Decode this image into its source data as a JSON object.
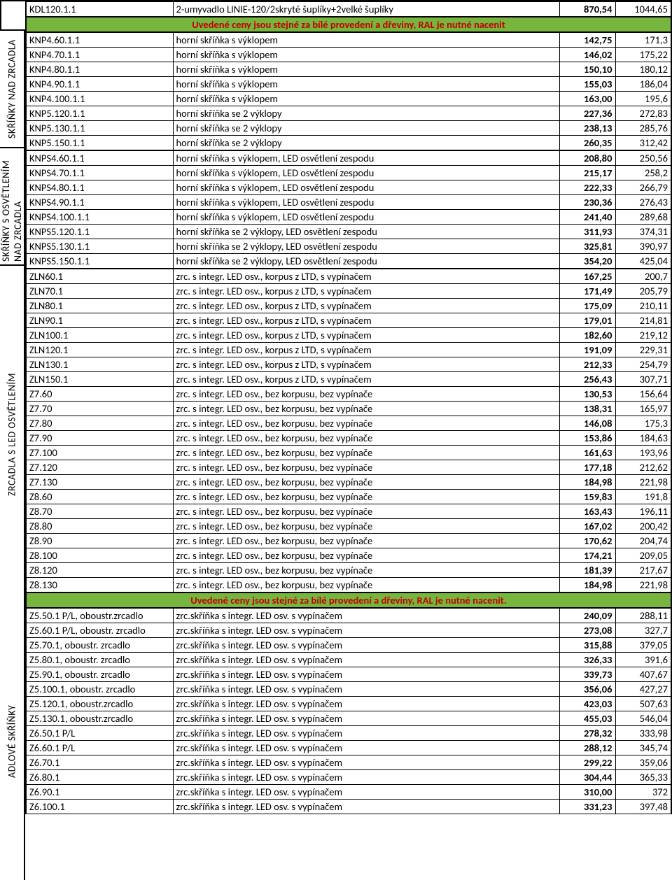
{
  "banner1": "Uvedené ceny jsou stejné za bílé provedení a dřeviny, RAL je nutné nacenit",
  "banner2": "Uvedené ceny jsou stejné za bílé provedení a dřeviny, RAL je nutné nacenit.",
  "sidelabels": [
    "SKŘÍŇKY NAD ZRCADLA",
    "SKŘÍŇKY S OSVĚTLENÍM NAD ZRCADLA",
    "ZRCADLA S LED OSVĚTLENÍM",
    "ADLOVÉ SKŘÍŇKY"
  ],
  "topRow": {
    "code": "KDL120.1.1",
    "desc": "2-umyvadlo LINIE-120/2skryté šuplíky+2velké šuplíky",
    "p1": "870,54",
    "p2": "1044,65"
  },
  "sec1": [
    {
      "code": "KNP4.60.1.1",
      "desc": "horní skříňka s výklopem",
      "p1": "142,75",
      "p2": "171,3"
    },
    {
      "code": "KNP4.70.1.1",
      "desc": "horní skříňka s výklopem",
      "p1": "146,02",
      "p2": "175,22"
    },
    {
      "code": "KNP4.80.1.1",
      "desc": "horní skříňka s výklopem",
      "p1": "150,10",
      "p2": "180,12"
    },
    {
      "code": "KNP4.90.1.1",
      "desc": "horní skříňka s výklopem",
      "p1": "155,03",
      "p2": "186,04"
    },
    {
      "code": "KNP4.100.1.1",
      "desc": "horní skříňka s výklopem",
      "p1": "163,00",
      "p2": "195,6"
    },
    {
      "code": "KNP5.120.1.1",
      "desc": "horní skříňka se 2 výklopy",
      "p1": "227,36",
      "p2": "272,83"
    },
    {
      "code": "KNP5.130.1.1",
      "desc": "horní skříňka se 2 výklopy",
      "p1": "238,13",
      "p2": "285,76"
    },
    {
      "code": "KNP5.150.1.1",
      "desc": "horní skříňka se 2 výklopy",
      "p1": "260,35",
      "p2": "312,42"
    }
  ],
  "sec2": [
    {
      "code": "KNPS4.60.1.1",
      "desc": "horní skříňka s výklopem, LED osvětlení zespodu",
      "p1": "208,80",
      "p2": "250,56"
    },
    {
      "code": "KNPS4.70.1.1",
      "desc": "horní skříňka s výklopem, LED osvětlení zespodu",
      "p1": "215,17",
      "p2": "258,2"
    },
    {
      "code": "KNPS4.80.1.1",
      "desc": "horní skříňka s výklopem, LED osvětlení zespodu",
      "p1": "222,33",
      "p2": "266,79"
    },
    {
      "code": "KNPS4.90.1.1",
      "desc": "horní skříňka s výklopem, LED osvětlení zespodu",
      "p1": "230,36",
      "p2": "276,43"
    },
    {
      "code": "KNPS4.100.1.1",
      "desc": "horní skříňka s výklopem, LED osvětlení zespodu",
      "p1": "241,40",
      "p2": "289,68"
    },
    {
      "code": "KNPS5.120.1.1",
      "desc": "horní skříňka se 2 výklopy, LED osvětlení zespodu",
      "p1": "311,93",
      "p2": "374,31"
    },
    {
      "code": "KNPS5.130.1.1",
      "desc": "horní skříňka se 2 výklopy, LED osvětlení zespodu",
      "p1": "325,81",
      "p2": "390,97"
    },
    {
      "code": "KNPS5.150.1.1",
      "desc": "horní skříňka se 2 výklopy, LED osvětlení zespodu",
      "p1": "354,20",
      "p2": "425,04"
    }
  ],
  "sec3": [
    {
      "code": "ZLN60.1",
      "desc": "zrc. s integr. LED osv., korpus z LTD, s vypínačem",
      "p1": "167,25",
      "p2": "200,7"
    },
    {
      "code": "ZLN70.1",
      "desc": "zrc. s integr. LED osv., korpus z LTD, s vypínačem",
      "p1": "171,49",
      "p2": "205,79"
    },
    {
      "code": "ZLN80.1",
      "desc": "zrc. s integr. LED osv., korpus z LTD, s vypínačem",
      "p1": "175,09",
      "p2": "210,11"
    },
    {
      "code": "ZLN90.1",
      "desc": "zrc. s integr. LED osv., korpus z LTD, s vypínačem",
      "p1": "179,01",
      "p2": "214,81"
    },
    {
      "code": "ZLN100.1",
      "desc": "zrc. s integr. LED osv., korpus z LTD, s vypínačem",
      "p1": "182,60",
      "p2": "219,12"
    },
    {
      "code": "ZLN120.1",
      "desc": "zrc. s integr. LED osv., korpus z LTD, s vypínačem",
      "p1": "191,09",
      "p2": "229,31"
    },
    {
      "code": "ZLN130.1",
      "desc": "zrc. s integr. LED osv., korpus z LTD, s vypínačem",
      "p1": "212,33",
      "p2": "254,79"
    },
    {
      "code": "ZLN150.1",
      "desc": "zrc. s integr. LED osv., korpus z LTD, s vypínačem",
      "p1": "256,43",
      "p2": "307,71"
    },
    {
      "code": "Z7.60",
      "desc": "zrc. s integr. LED osv., bez korpusu, bez vypínače",
      "p1": "130,53",
      "p2": "156,64"
    },
    {
      "code": "Z7.70",
      "desc": "zrc. s integr. LED osv., bez korpusu, bez vypínače",
      "p1": "138,31",
      "p2": "165,97"
    },
    {
      "code": "Z7.80",
      "desc": "zrc. s integr. LED osv., bez korpusu, bez vypínače",
      "p1": "146,08",
      "p2": "175,3"
    },
    {
      "code": "Z7.90",
      "desc": "zrc. s integr. LED osv., bez korpusu, bez vypínače",
      "p1": "153,86",
      "p2": "184,63"
    },
    {
      "code": "Z7.100",
      "desc": "zrc. s integr. LED osv., bez korpusu, bez vypínače",
      "p1": "161,63",
      "p2": "193,96"
    },
    {
      "code": "Z7.120",
      "desc": "zrc. s integr. LED osv., bez korpusu, bez vypínače",
      "p1": "177,18",
      "p2": "212,62"
    },
    {
      "code": "Z7.130",
      "desc": "zrc. s integr. LED osv., bez korpusu, bez vypínače",
      "p1": "184,98",
      "p2": "221,98"
    },
    {
      "code": "Z8.60",
      "desc": "zrc. s integr. LED osv., bez korpusu, bez vypínače",
      "p1": "159,83",
      "p2": "191,8"
    },
    {
      "code": "Z8.70",
      "desc": "zrc. s integr. LED osv., bez korpusu, bez vypínače",
      "p1": "163,43",
      "p2": "196,11"
    },
    {
      "code": "Z8.80",
      "desc": "zrc. s integr. LED osv., bez korpusu, bez vypínače",
      "p1": "167,02",
      "p2": "200,42"
    },
    {
      "code": "Z8.90",
      "desc": "zrc. s integr. LED osv., bez korpusu, bez vypínače",
      "p1": "170,62",
      "p2": "204,74"
    },
    {
      "code": "Z8.100",
      "desc": "zrc. s integr. LED osv., bez korpusu, bez vypínače",
      "p1": "174,21",
      "p2": "209,05"
    },
    {
      "code": "Z8.120",
      "desc": "zrc. s integr. LED osv., bez korpusu, bez vypínače",
      "p1": "181,39",
      "p2": "217,67"
    },
    {
      "code": "Z8.130",
      "desc": "zrc. s integr. LED osv., bez korpusu, bez vypínače",
      "p1": "184,98",
      "p2": "221,98"
    }
  ],
  "sec4": [
    {
      "code": "Z5.50.1 P/L, oboustr.zrcadlo",
      "desc": "zrc.skříňka s integr. LED osv. s vypínačem",
      "p1": "240,09",
      "p2": "288,11"
    },
    {
      "code": "Z5.60.1 P/L, oboustr. zrcadlo",
      "desc": "zrc.skříňka s integr. LED osv. s vypínačem",
      "p1": "273,08",
      "p2": "327,7"
    },
    {
      "code": "Z5.70.1, oboustr. zrcadlo",
      "desc": "zrc.skříňka s integr. LED osv. s vypínačem",
      "p1": "315,88",
      "p2": "379,05"
    },
    {
      "code": "Z5.80.1, oboustr. zrcadlo",
      "desc": "zrc.skříňka s integr. LED osv. s vypínačem",
      "p1": "326,33",
      "p2": "391,6"
    },
    {
      "code": "Z5.90.1, oboustr. zrcadlo",
      "desc": "zrc.skříňka s integr. LED osv. s vypínačem",
      "p1": "339,73",
      "p2": "407,67"
    },
    {
      "code": "Z5.100.1, oboustr. zrcadlo",
      "desc": "zrc.skříňka s integr. LED osv. s vypínačem",
      "p1": "356,06",
      "p2": "427,27"
    },
    {
      "code": "Z5.120.1, oboustr.zrcadlo",
      "desc": "zrc.skříňka s integr. LED osv. s vypínačem",
      "p1": "423,03",
      "p2": "507,63"
    },
    {
      "code": "Z5.130.1, oboustr.zrcadlo",
      "desc": "zrc.skříňka s integr. LED osv. s vypínačem",
      "p1": "455,03",
      "p2": "546,04"
    },
    {
      "code": "Z6.50.1 P/L",
      "desc": "zrc.skříňka s integr. LED osv. s vypínačem",
      "p1": "278,32",
      "p2": "333,98"
    },
    {
      "code": "Z6.60.1 P/L",
      "desc": "zrc.skříňka s integr. LED osv. s vypínačem",
      "p1": "288,12",
      "p2": "345,74"
    },
    {
      "code": "Z6.70.1",
      "desc": "zrc.skříňka s integr. LED osv. s vypínačem",
      "p1": "299,22",
      "p2": "359,06"
    },
    {
      "code": "Z6.80.1",
      "desc": "zrc.skříňka s integr. LED osv. s vypínačem",
      "p1": "304,44",
      "p2": "365,33"
    },
    {
      "code": "Z6.90.1",
      "desc": "zrc.skříňka s integr. LED osv. s vypínačem",
      "p1": "310,00",
      "p2": "372"
    },
    {
      "code": "Z6.100.1",
      "desc": "zrc.skříňka s integr. LED osv. s vypínačem",
      "p1": "331,23",
      "p2": "397,48"
    }
  ],
  "sideHeights": {
    "topGap": 42,
    "sec1": 168,
    "sec2": 168,
    "sec3": 484,
    "sec4": 396
  },
  "colors": {
    "banner_bg": "#77b53f",
    "banner_text": "#c00000"
  }
}
